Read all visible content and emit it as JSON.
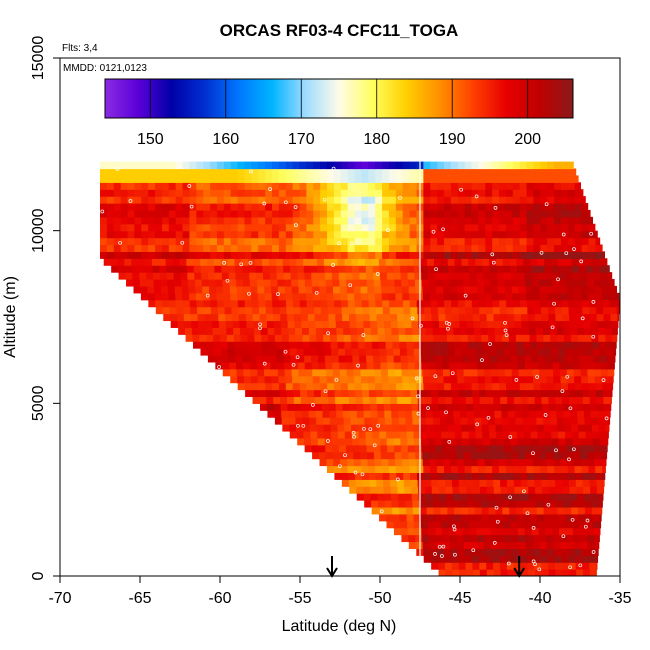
{
  "chart_data": {
    "type": "heatmap",
    "title": "ORCAS RF03-4 CFC11_TOGA",
    "flights_label": "Flts: 3,4",
    "date_label": "MMDD: 0121,0123",
    "xlabel": "Latitude (deg N)",
    "ylabel": "Altitude (m)",
    "xlim": [
      -70,
      -35
    ],
    "ylim": [
      0,
      15000
    ],
    "x_ticks": [
      -70,
      -65,
      -60,
      -55,
      -50,
      -45,
      -40,
      -35
    ],
    "x_tick_labels": [
      "-70",
      "-65",
      "-60",
      "-55",
      "-50",
      "-45",
      "-40",
      "-35"
    ],
    "y_ticks": [
      0,
      5000,
      10000,
      15000
    ],
    "y_tick_labels": [
      "0",
      "5000",
      "10000",
      "15000"
    ],
    "colorbar": {
      "min": 144,
      "max": 206,
      "ticks": [
        150,
        160,
        170,
        180,
        190,
        200
      ],
      "tick_labels": [
        "150",
        "160",
        "170",
        "180",
        "190",
        "200"
      ],
      "colors": [
        "#8a2be2",
        "#5a00d8",
        "#0000a8",
        "#0030d0",
        "#0077ff",
        "#00b4ff",
        "#9fdcff",
        "#fffbe8",
        "#ffff60",
        "#ffd000",
        "#ff9000",
        "#ff4000",
        "#e80000",
        "#c00000",
        "#8b1a1a"
      ]
    },
    "field_outline": {
      "description": "Curtain region: altitude top ~12000 m; left boundary slopes from (-67.5, 9200) down to (-47.5, 600); right boundary from (-38, 12000) to (-35, 8000) then down to (-36.5, 0)",
      "polygon_data_units": [
        [
          -67,
          12000
        ],
        [
          -38,
          12000
        ],
        [
          -35,
          8000
        ],
        [
          -36,
          5000
        ],
        [
          -36.5,
          0
        ],
        [
          -47.3,
          0
        ],
        [
          -47.5,
          600
        ],
        [
          -60,
          6000
        ],
        [
          -67.5,
          9200
        ]
      ]
    },
    "features": [
      {
        "name": "cold-core",
        "lat": -51.2,
        "alt": 10500,
        "value": 178
      },
      {
        "name": "upper-band",
        "alt": 11900,
        "value": 162
      },
      {
        "name": "lower-warm",
        "alt": 3000,
        "value": 200
      }
    ],
    "vertical_line_lat": -47.5,
    "arrows_lat": [
      -53,
      -41.3
    ]
  }
}
